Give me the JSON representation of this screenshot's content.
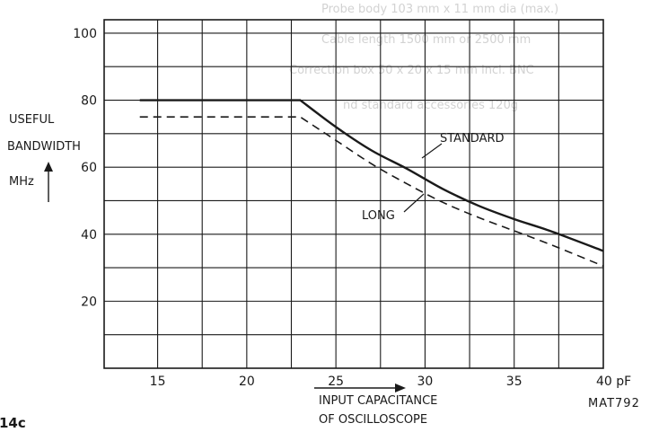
{
  "chart_data": {
    "type": "line",
    "xlabel_line1": "INPUT CAPACITANCE",
    "xlabel_line2": "OF OSCILLOSCOPE",
    "x_unit": "pF",
    "ylabel_line1": "USEFUL",
    "ylabel_line2": "BANDWIDTH",
    "ylabel_unit": "MHz",
    "xlim": [
      12,
      40
    ],
    "ylim": [
      0,
      104
    ],
    "xticks": [
      15,
      20,
      25,
      30,
      35,
      40
    ],
    "yticks": [
      20,
      40,
      60,
      80,
      100
    ],
    "x_tick_labels": [
      "15",
      "20",
      "25",
      "30",
      "35",
      "40 pF"
    ],
    "y_tick_labels": [
      "20",
      "40",
      "60",
      "80",
      "100"
    ],
    "grid": true,
    "series": [
      {
        "name": "STANDARD",
        "style": "solid",
        "x": [
          14,
          23,
          25,
          27,
          29,
          31,
          33,
          35,
          37,
          40
        ],
        "y": [
          80,
          80,
          72,
          65,
          59.5,
          53.5,
          48.5,
          44.5,
          41,
          35
        ]
      },
      {
        "name": "LONG",
        "style": "dashed",
        "x": [
          14,
          23,
          25,
          27,
          29,
          31,
          33,
          35,
          37,
          40
        ],
        "y": [
          75,
          75,
          68,
          61,
          55,
          49.5,
          45,
          41,
          37,
          30.5
        ]
      }
    ],
    "code_label": "MAT792",
    "figure_fragment": "14c"
  },
  "background_text": [
    "Probe body 103 mm x 11 mm dia (max.)",
    "Cable length 1500 mm or 2500 mm",
    "Correction box 50 x 20 x 15 mm incl. BNC",
    "nd standard accessories 120g"
  ]
}
